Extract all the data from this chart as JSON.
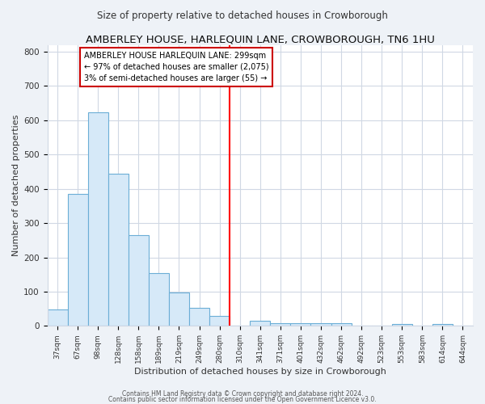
{
  "title": "AMBERLEY HOUSE, HARLEQUIN LANE, CROWBOROUGH, TN6 1HU",
  "subtitle": "Size of property relative to detached houses in Crowborough",
  "xlabel": "Distribution of detached houses by size in Crowborough",
  "ylabel": "Number of detached properties",
  "bar_labels": [
    "37sqm",
    "67sqm",
    "98sqm",
    "128sqm",
    "158sqm",
    "189sqm",
    "219sqm",
    "249sqm",
    "280sqm",
    "310sqm",
    "341sqm",
    "371sqm",
    "401sqm",
    "432sqm",
    "462sqm",
    "492sqm",
    "523sqm",
    "553sqm",
    "583sqm",
    "614sqm",
    "644sqm"
  ],
  "bar_values": [
    48,
    385,
    622,
    445,
    265,
    155,
    97,
    52,
    30,
    0,
    14,
    8,
    8,
    8,
    8,
    0,
    0,
    5,
    0,
    5,
    0
  ],
  "bar_fill_color": "#d6e9f8",
  "bar_edge_color": "#6baed6",
  "vline_x": 9,
  "vline_color": "red",
  "annotation_title": "AMBERLEY HOUSE HARLEQUIN LANE: 299sqm",
  "annotation_line1": "← 97% of detached houses are smaller (2,075)",
  "annotation_line2": "3% of semi-detached houses are larger (55) →",
  "ylim": [
    0,
    820
  ],
  "yticks": [
    0,
    100,
    200,
    300,
    400,
    500,
    600,
    700,
    800
  ],
  "footer1": "Contains HM Land Registry data © Crown copyright and database right 2024.",
  "footer2": "Contains public sector information licensed under the Open Government Licence v3.0.",
  "background_color": "#eef2f7",
  "plot_bg_color": "#ffffff",
  "grid_color": "#d0d8e4"
}
